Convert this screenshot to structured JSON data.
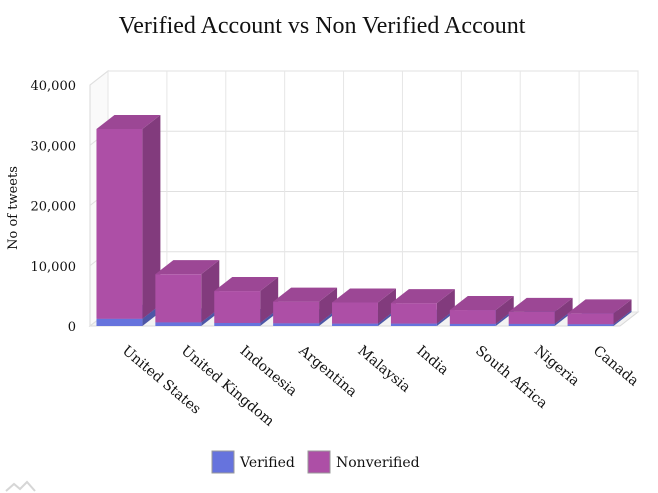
{
  "chart_data": {
    "type": "bar",
    "stacked": true,
    "three_d": true,
    "title": "Verified Account vs Non Verified Account",
    "xlabel": "",
    "ylabel": "No of tweets",
    "ylim": [
      0,
      40000
    ],
    "yticks": [
      0,
      10000,
      20000,
      30000,
      40000
    ],
    "ytick_labels": [
      "0",
      "10,000",
      "20,000",
      "30,000",
      "40,000"
    ],
    "grid": true,
    "legend_position": "bottom",
    "categories": [
      "United States",
      "United Kingdom",
      "Indonesia",
      "Argentina",
      "Malaysia",
      "India",
      "South Africa",
      "Nigeria",
      "Canada"
    ],
    "series": [
      {
        "name": "Verified",
        "color": "#6673dd",
        "values": [
          1200,
          600,
          500,
          450,
          400,
          400,
          350,
          350,
          300
        ]
      },
      {
        "name": "Nonverified",
        "color": "#ad4fa6",
        "values": [
          31500,
          8000,
          5300,
          3600,
          3500,
          3400,
          2300,
          2000,
          1800
        ]
      }
    ]
  }
}
